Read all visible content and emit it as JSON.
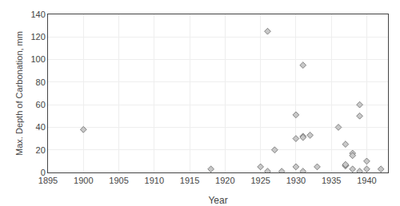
{
  "chart_data": {
    "type": "scatter",
    "x": [
      1900,
      1918,
      1925,
      1926,
      1926,
      1927,
      1928,
      1930,
      1930,
      1930,
      1931,
      1931,
      1931,
      1931,
      1932,
      1933,
      1936,
      1937,
      1937,
      1937,
      1937,
      1938,
      1938,
      1938,
      1939,
      1939,
      1939,
      1940,
      1940,
      1942
    ],
    "values": [
      38,
      3,
      5,
      125,
      1,
      20,
      1,
      5,
      51,
      30,
      95,
      32,
      31,
      1,
      33,
      5,
      40,
      6,
      6,
      25,
      7,
      17,
      15,
      3,
      60,
      50,
      1,
      10,
      3,
      3
    ],
    "xlabel": "Year",
    "ylabel": "Max. Depth of Carbonation, mm",
    "xlim": [
      1895,
      1943
    ],
    "ylim": [
      0,
      140
    ],
    "xticks": [
      1895,
      1900,
      1905,
      1910,
      1915,
      1920,
      1925,
      1930,
      1935,
      1940
    ],
    "yticks": [
      0,
      20,
      40,
      60,
      80,
      100,
      120,
      140
    ],
    "color": "#c8c8c8",
    "marker": "diamond",
    "grid": true
  }
}
